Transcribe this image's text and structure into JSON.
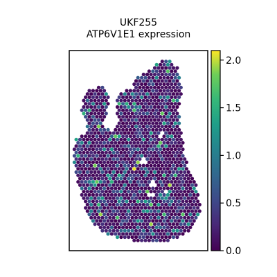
{
  "chart_data": {
    "type": "scatter",
    "title": "UKF255",
    "subtitle": "ATP6V1E1 expression",
    "xlabel": "",
    "ylabel": "",
    "colormap": "viridis",
    "color_range": [
      0.0,
      2.1
    ],
    "colorbar_ticks": [
      0.0,
      0.5,
      1.0,
      1.5,
      2.0
    ],
    "colorbar_tick_labels": [
      "0.0",
      "0.5",
      "1.0",
      "1.5",
      "2.0"
    ],
    "grid": false,
    "legend": "colorbar-right",
    "spots_note": "spatial transcriptomics hex spots; values mostly 0.0-0.8, sparse highs up to ~2.0"
  }
}
